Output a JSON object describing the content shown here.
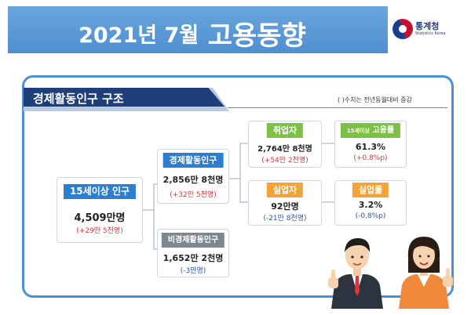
{
  "header": {
    "title_part1": "2021년  7월",
    "title_part2": "고용동향",
    "logo_name": "통계청",
    "logo_sub": "Statistics Korea"
  },
  "section": {
    "title": "경제활동인구 구조",
    "note": "( )수치는 전년동월대비 증감"
  },
  "boxes": {
    "population": {
      "label": "15세이상 인구",
      "value": "4,509만명",
      "change": "(+29만 5천명)"
    },
    "active": {
      "label": "경제활동인구",
      "value": "2,856만 8천명",
      "change": "(+32만 5천명)"
    },
    "inactive": {
      "label": "비경제활동인구",
      "value": "1,652만 2천명",
      "change": "(-3만명)"
    },
    "employed": {
      "label": "취업자",
      "value": "2,764만 8천명",
      "change": "(+54만 2천명)"
    },
    "emp_rate": {
      "label_small": "15세이상",
      "label": "고용률",
      "value": "61.3%",
      "change": "(+0.8%p)"
    },
    "unemployed": {
      "label": "실업자",
      "value": "92만명",
      "change": "(-21만 8천명)"
    },
    "unemp_rate": {
      "label": "실업률",
      "value": "3.2%",
      "change": "(-0.8%p)"
    }
  },
  "colors": {
    "banner": "#5b9bd5",
    "section_tab": "#1f3f7a",
    "head_blue": "#2c7fd0",
    "head_gray": "#7d8791",
    "head_green": "#7cc144",
    "head_orange": "#f2a43a",
    "increase": "#d9363e",
    "decrease": "#2b55a8"
  },
  "icons": [
    "statistics-korea-logo",
    "businessman-thumbs-up-illustration",
    "businesswoman-thumbs-up-illustration"
  ]
}
